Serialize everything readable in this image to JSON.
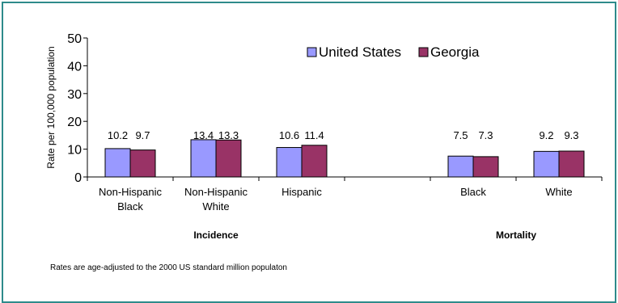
{
  "chart_data": {
    "type": "bar",
    "ylabel": "Rate per 100,000 population",
    "ylim": [
      0,
      50
    ],
    "yticks": [
      0,
      10,
      20,
      30,
      40,
      50
    ],
    "categories": [
      {
        "lines": [
          "Non-Hispanic",
          "Black"
        ],
        "group": "Incidence"
      },
      {
        "lines": [
          "Non-Hispanic",
          "White"
        ],
        "group": "Incidence"
      },
      {
        "lines": [
          "Hispanic"
        ],
        "group": "Incidence"
      },
      {
        "lines": [],
        "group": ""
      },
      {
        "lines": [
          "Black"
        ],
        "group": "Mortality"
      },
      {
        "lines": [
          "White"
        ],
        "group": "Mortality"
      }
    ],
    "series": [
      {
        "name": "United States",
        "color": "#9999ff",
        "values": [
          10.2,
          13.4,
          10.6,
          null,
          7.5,
          9.2
        ],
        "labels": [
          "10.2",
          "13.4",
          "10.6",
          "",
          "7.5",
          "9.2"
        ]
      },
      {
        "name": "Georgia",
        "color": "#993366",
        "values": [
          9.7,
          13.3,
          11.4,
          null,
          7.3,
          9.3
        ],
        "labels": [
          "9.7",
          "13.3",
          "11.4",
          "",
          "7.3",
          "9.3"
        ]
      }
    ],
    "groups": [
      "Incidence",
      "Mortality"
    ],
    "legend_position": "top-right",
    "grid": false
  },
  "footnote": "Rates are age-adjusted to the 2000 US standard million populaton"
}
